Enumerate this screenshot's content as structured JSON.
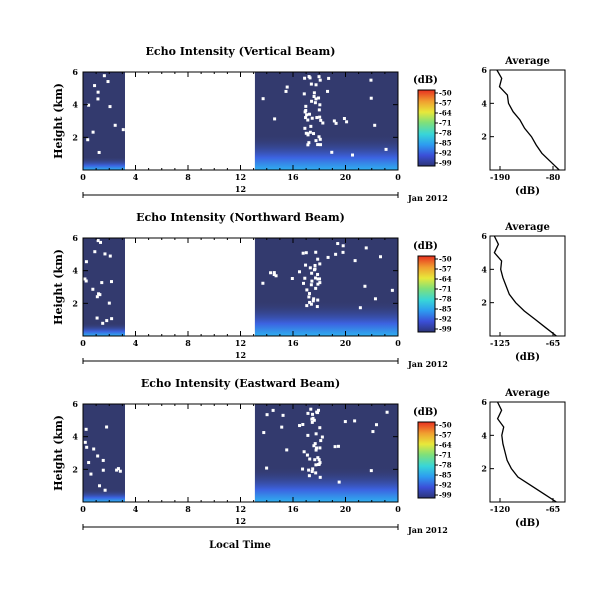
{
  "shared": {
    "date_label": "Jan 2012",
    "day_label": "12",
    "xlabel": "Local Time",
    "x_ticks": [
      "0",
      "4",
      "8",
      "12",
      "16",
      "20",
      "0"
    ],
    "y_ticks": [
      "6",
      "4",
      "2"
    ],
    "y_label": "Height (km)",
    "cb_unit": "(dB)",
    "cb_ticks": [
      "-50",
      "-57",
      "-64",
      "-71",
      "-78",
      "-85",
      "-92",
      "-99"
    ],
    "avg_title": "Average",
    "avg_unit": "(dB)",
    "avg_y_ticks": [
      "6",
      "4",
      "2"
    ]
  },
  "colors": {
    "background_low": "#333a6e",
    "colorbar": [
      "#2c3478",
      "#3b4fd8",
      "#2d9cf0",
      "#38d6d8",
      "#7fe07a",
      "#e8e83a",
      "#f0a030",
      "#e83020"
    ],
    "gap": "#ffffff"
  },
  "chart_data": [
    {
      "type": "heatmap",
      "title": "Echo Intensity (Vertical Beam)",
      "xlabel": "Local Time",
      "ylabel": "Height (km)",
      "x_range_hours": [
        0,
        24
      ],
      "y_range_km": [
        0,
        6
      ],
      "color_range_db": [
        -99,
        -50
      ],
      "data_gap_hours": [
        3.2,
        13.1
      ],
      "noise_floor_db": -97,
      "near_surface_db": -88,
      "average_profile": {
        "title": "Average",
        "xlabel": "(dB)",
        "x_ticks": [
          "-190",
          "-80"
        ],
        "x_range": [
          -200,
          -70
        ],
        "heights_km": [
          0,
          0.5,
          1,
          1.5,
          2,
          2.5,
          3,
          3.5,
          4,
          4.5,
          5,
          5.5,
          6
        ],
        "values_db": [
          -80,
          -95,
          -110,
          -120,
          -128,
          -140,
          -148,
          -160,
          -168,
          -175,
          -180,
          -185,
          -188
        ]
      }
    },
    {
      "type": "heatmap",
      "title": "Echo Intensity (Northward Beam)",
      "xlabel": "Local Time",
      "ylabel": "Height (km)",
      "x_range_hours": [
        0,
        24
      ],
      "y_range_km": [
        0,
        6
      ],
      "color_range_db": [
        -99,
        -50
      ],
      "data_gap_hours": [
        3.2,
        13.1
      ],
      "noise_floor_db": -97,
      "near_surface_db": -88,
      "average_profile": {
        "title": "Average",
        "xlabel": "(dB)",
        "x_ticks": [
          "-125",
          "-65"
        ],
        "x_range": [
          -130,
          -60
        ],
        "heights_km": [
          0,
          0.5,
          1,
          1.5,
          2,
          2.5,
          3,
          3.5,
          4,
          4.5,
          5,
          5.5,
          6
        ],
        "values_db": [
          -68,
          -78,
          -88,
          -98,
          -106,
          -112,
          -115,
          -118,
          -120,
          -122,
          -124,
          -125,
          -126
        ]
      }
    },
    {
      "type": "heatmap",
      "title": "Echo Intensity (Eastward Beam)",
      "xlabel": "Local Time",
      "ylabel": "Height (km)",
      "x_range_hours": [
        0,
        24
      ],
      "y_range_km": [
        0,
        6
      ],
      "color_range_db": [
        -99,
        -50
      ],
      "data_gap_hours": [
        3.2,
        13.1
      ],
      "noise_floor_db": -97,
      "near_surface_db": -88,
      "average_profile": {
        "title": "Average",
        "xlabel": "(dB)",
        "x_ticks": [
          "-120",
          "-65"
        ],
        "x_range": [
          -130,
          -60
        ],
        "heights_km": [
          0,
          0.5,
          1,
          1.5,
          2,
          2.5,
          3,
          3.5,
          4,
          4.5,
          5,
          5.5,
          6
        ],
        "values_db": [
          -68,
          -80,
          -92,
          -104,
          -110,
          -114,
          -116,
          -118,
          -119,
          -120,
          -121,
          -122,
          -123
        ]
      }
    }
  ]
}
